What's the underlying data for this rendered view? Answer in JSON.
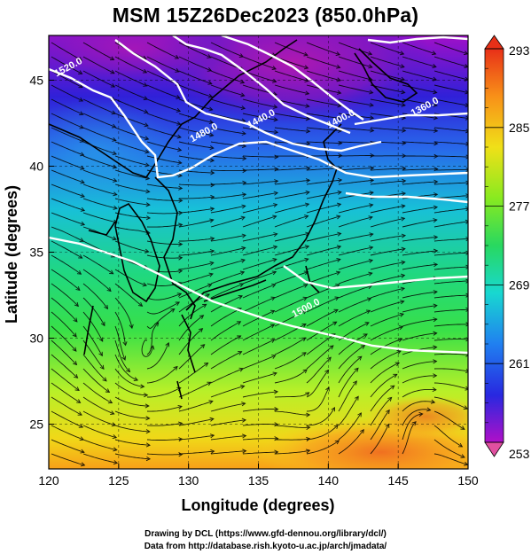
{
  "title": "MSM 15Z26Dec2023 (850.0hPa)",
  "map": {
    "xlabel": "Longitude (degrees)",
    "ylabel": "Latitude  (degrees)",
    "lon_range": [
      120,
      150
    ],
    "lat_range": [
      22.4,
      47.6
    ],
    "lon_ticks": [
      120,
      125,
      130,
      135,
      140,
      145,
      150
    ],
    "lat_ticks": [
      25,
      30,
      35,
      40,
      45
    ],
    "grid": true,
    "contour_labels": [
      {
        "text": "1520.0",
        "lon": 121.5,
        "lat": 45.6
      },
      {
        "text": "1480.0",
        "lon": 131.2,
        "lat": 41.8
      },
      {
        "text": "1440.0",
        "lon": 135.3,
        "lat": 42.6
      },
      {
        "text": "1400.0",
        "lon": 141.0,
        "lat": 42.6
      },
      {
        "text": "1360.0",
        "lon": 147.0,
        "lat": 43.3
      },
      {
        "text": "1500.0",
        "lon": 138.5,
        "lat": 31.6
      }
    ]
  },
  "colorbar": {
    "min": 253,
    "max": 293,
    "labels": [
      "293",
      "285",
      "277",
      "269",
      "261",
      "253"
    ],
    "colors": [
      "#e0508a",
      "#a010d0",
      "#2a2ce8",
      "#2a9af0",
      "#30d0c0",
      "#38e870",
      "#c8f030",
      "#f8c010",
      "#f45020",
      "#e82060"
    ]
  },
  "credits": {
    "line1": "Drawing by DCL (https://www.gfd-dennou.org/library/dcl/)",
    "line2": "Data from http://database.rish.kyoto-u.ac.jp/arch/jmadata/"
  }
}
